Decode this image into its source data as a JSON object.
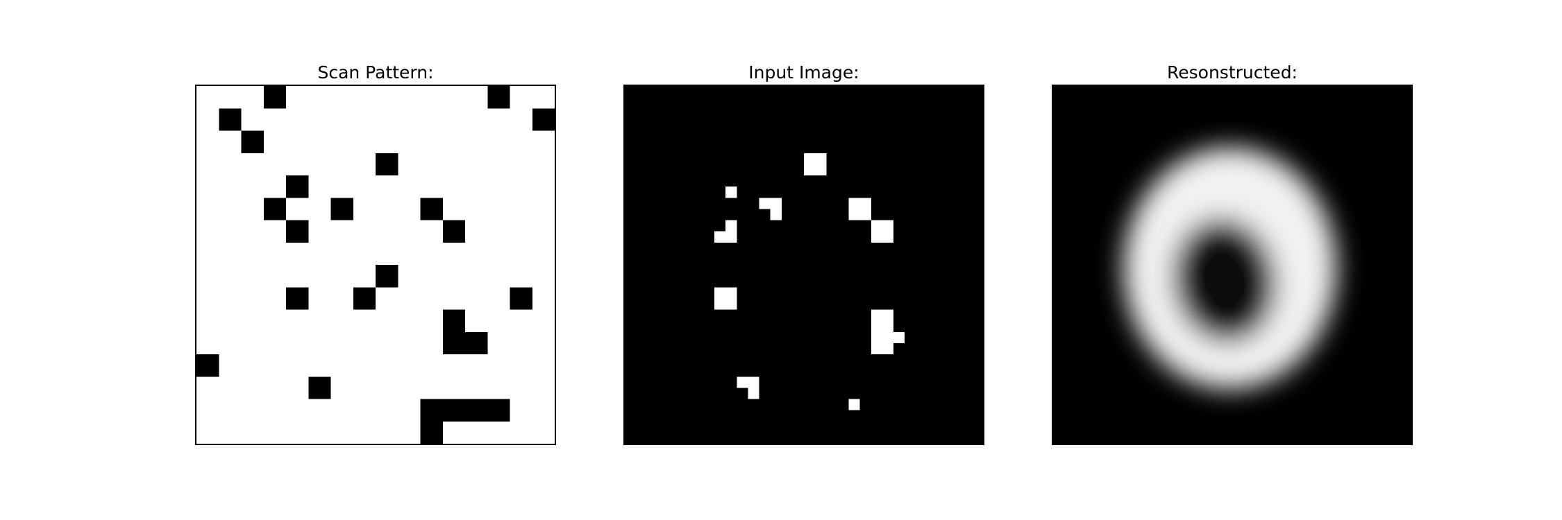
{
  "panels": [
    {
      "title": "Scan Pattern:"
    },
    {
      "title": "Input Image:"
    },
    {
      "title": "Resonstructed:"
    }
  ],
  "colors": {
    "background": "#ffffff",
    "ink": "#000000",
    "bright": "#ffffff"
  }
}
